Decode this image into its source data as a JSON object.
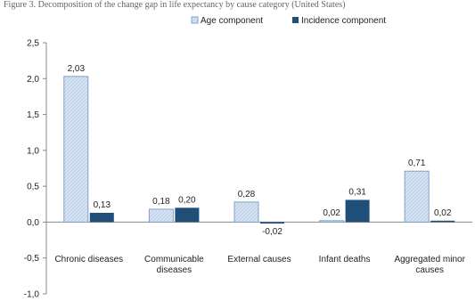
{
  "title": "Figure 3. Decomposition of the change gap in life expectancy by cause category (United States)",
  "colors": {
    "age_fill": "#d5e3f2",
    "age_stroke": "#7fa2c8",
    "incidence_fill": "#1f4e79",
    "axis": "#888888"
  },
  "chart_data": {
    "type": "bar",
    "title": "Figure 3. Decomposition of the change gap in life expectancy by cause category (United States)",
    "categories": [
      [
        "Chronic diseases"
      ],
      [
        "Communicable",
        "diseases"
      ],
      [
        "External causes"
      ],
      [
        "Infant deaths"
      ],
      [
        "Aggregated minor",
        "causes"
      ]
    ],
    "series": [
      {
        "name": "Age component",
        "values": [
          2.03,
          0.18,
          0.28,
          0.02,
          0.71
        ],
        "labels": [
          "2,03",
          "0,18",
          "0,28",
          "0,02",
          "0,71"
        ]
      },
      {
        "name": "Incidence component",
        "values": [
          0.13,
          0.2,
          -0.02,
          0.31,
          0.02
        ],
        "labels": [
          "0,13",
          "0,20",
          "-0,02",
          "0,31",
          "0,02"
        ]
      }
    ],
    "ylim": [
      -1.0,
      2.5
    ],
    "yticks": [
      2.5,
      2.0,
      1.5,
      1.0,
      0.5,
      0.0,
      -0.5,
      -1.0
    ],
    "ytick_labels": [
      "2,5",
      "2,0",
      "1,5",
      "1,0",
      "0,5",
      "0,0",
      "-0,5",
      "-1,0"
    ],
    "legend_position": "top",
    "grid": false
  }
}
